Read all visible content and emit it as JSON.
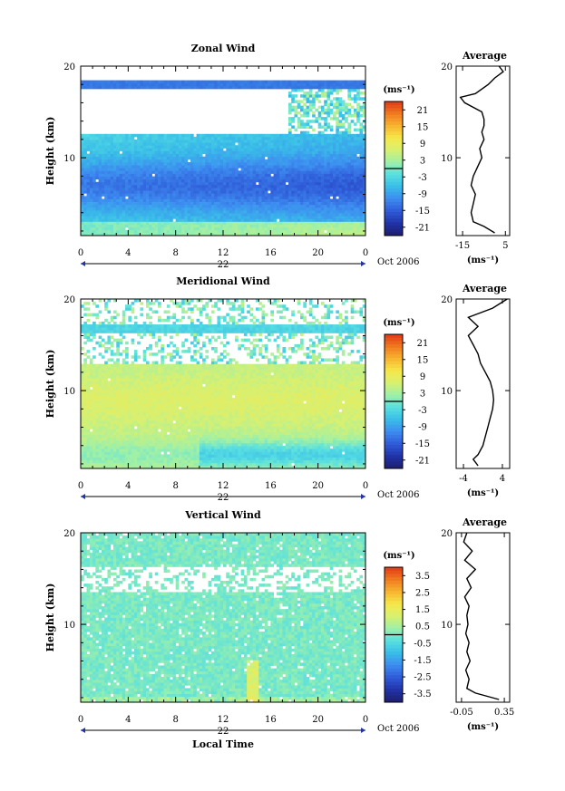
{
  "chart_data": [
    {
      "type": "heatmap",
      "title": "Zonal Wind",
      "ylabel": "Height (km)",
      "x_ticks": [
        "0",
        "4",
        "8",
        "12",
        "16",
        "20",
        "0"
      ],
      "y_ticks": [
        "20",
        "10"
      ],
      "xlim": [
        0,
        24
      ],
      "ylim": [
        1.5,
        20
      ],
      "day_label": "22",
      "month_label": "Oct 2006",
      "colorbar": {
        "unit": "(ms⁻¹)",
        "ticks": [
          "21",
          "15",
          "9",
          "3",
          "-3",
          "-9",
          "-15",
          "-21"
        ],
        "range": [
          -24,
          24
        ]
      },
      "profile": {
        "title": "Average",
        "unit": "(ms⁻¹)",
        "x_ticks": [
          "-15",
          "5"
        ],
        "y_ticks": [
          "20",
          "10"
        ],
        "xlim": [
          -18,
          7
        ],
        "heights": [
          1.8,
          2.5,
          3.0,
          4.0,
          5.0,
          6.0,
          7.0,
          8.0,
          9.0,
          10.0,
          11.0,
          12.0,
          12.8,
          13.5,
          14.2,
          15.0,
          16.0,
          16.6,
          17.0,
          18.0,
          18.7,
          19.4,
          20.0
        ],
        "values": [
          0,
          -5,
          -10,
          -11,
          -10,
          -9,
          -11,
          -10,
          -8,
          -6,
          -7,
          -5,
          -6,
          -5,
          -5,
          -6,
          -14,
          -16,
          -9,
          -3,
          0,
          4,
          2
        ]
      }
    },
    {
      "type": "heatmap",
      "title": "Meridional Wind",
      "ylabel": "Height (km)",
      "x_ticks": [
        "0",
        "4",
        "8",
        "12",
        "16",
        "20",
        "0"
      ],
      "y_ticks": [
        "20",
        "10"
      ],
      "xlim": [
        0,
        24
      ],
      "ylim": [
        1.5,
        20
      ],
      "day_label": "22",
      "month_label": "Oct 2006",
      "colorbar": {
        "unit": "(ms⁻¹)",
        "ticks": [
          "21",
          "15",
          "9",
          "3",
          "-3",
          "-9",
          "-15",
          "-21"
        ],
        "range": [
          -24,
          24
        ]
      },
      "profile": {
        "title": "Average",
        "unit": "(ms⁻¹)",
        "x_ticks": [
          "-4",
          "4"
        ],
        "y_ticks": [
          "20",
          "10"
        ],
        "xlim": [
          -5.5,
          5.5
        ],
        "heights": [
          1.8,
          2.5,
          3.0,
          4.0,
          5.0,
          6.0,
          7.0,
          8.0,
          9.0,
          10.0,
          11.0,
          12.0,
          13.0,
          14.0,
          15.0,
          16.0,
          17.0,
          18.0,
          19.0,
          20.0
        ],
        "values": [
          -1,
          -2,
          -1,
          0,
          0.5,
          1,
          1.5,
          2,
          2.2,
          2,
          1.5,
          0.5,
          -0.5,
          -1,
          -2,
          -3,
          -1,
          -3,
          2,
          5
        ]
      }
    },
    {
      "type": "heatmap",
      "title": "Vertical Wind",
      "ylabel": "Height (km)",
      "xlabel": "Local Time",
      "x_ticks": [
        "0",
        "4",
        "8",
        "12",
        "16",
        "20",
        "0"
      ],
      "y_ticks": [
        "20",
        "10"
      ],
      "xlim": [
        0,
        24
      ],
      "ylim": [
        1.5,
        20
      ],
      "day_label": "22",
      "month_label": "Oct 2006",
      "colorbar": {
        "unit": "(ms⁻¹)",
        "ticks": [
          "3.5",
          "2.5",
          "1.5",
          "0.5",
          "-0.5",
          "-1.5",
          "-2.5",
          "-3.5"
        ],
        "range": [
          -4,
          4
        ]
      },
      "profile": {
        "title": "Average",
        "unit": "(ms⁻¹)",
        "x_ticks": [
          "-0.05",
          "0.35"
        ],
        "y_ticks": [
          "20",
          "10"
        ],
        "xlim": [
          -0.1,
          0.4
        ],
        "heights": [
          1.8,
          2.5,
          3.0,
          4.0,
          5.0,
          6.0,
          7.0,
          8.0,
          9.0,
          10.0,
          11.0,
          12.0,
          13.0,
          14.0,
          15.0,
          16.0,
          17.0,
          18.0,
          19.0,
          20.0
        ],
        "values": [
          0.3,
          0.08,
          0.0,
          0.02,
          -0.01,
          0.03,
          0.0,
          0.02,
          -0.01,
          0.01,
          0.0,
          0.02,
          -0.02,
          0.04,
          0.0,
          0.08,
          -0.02,
          0.05,
          -0.03,
          0.0
        ]
      }
    }
  ],
  "colors": {
    "scale": [
      "#1e1e6e",
      "#2033a8",
      "#2f5bd8",
      "#3d8cf0",
      "#39bde8",
      "#59e0e0",
      "#9ef0a8",
      "#d8f070",
      "#f6e84a",
      "#f7b42f",
      "#f07a1f",
      "#e03a18"
    ],
    "nodata": "#ffffff"
  }
}
